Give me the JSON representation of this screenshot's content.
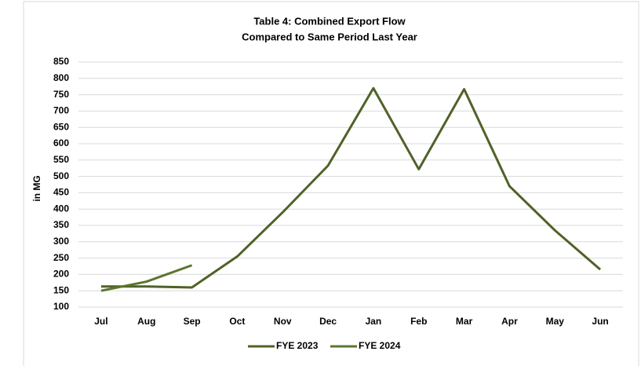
{
  "chart_data": {
    "type": "line",
    "title": "Table 4: Combined Export Flow",
    "subtitle": "Compared to Same Period Last Year",
    "y_label": "in MG",
    "categories": [
      "Jul",
      "Aug",
      "Sep",
      "Oct",
      "Nov",
      "Dec",
      "Jan",
      "Feb",
      "Mar",
      "Apr",
      "May",
      "Jun"
    ],
    "series": [
      {
        "name": "FYE 2023",
        "color": "#4f6228",
        "values": [
          163,
          163,
          160,
          255,
          390,
          533,
          770,
          522,
          767,
          470,
          335,
          215
        ]
      },
      {
        "name": "FYE 2024",
        "color": "#5b7530",
        "values": [
          150,
          178,
          228,
          null,
          null,
          null,
          null,
          null,
          null,
          null,
          null,
          null
        ]
      }
    ],
    "ylim": [
      100,
      850
    ],
    "yticks": [
      100,
      150,
      200,
      250,
      300,
      350,
      400,
      450,
      500,
      550,
      600,
      650,
      700,
      750,
      800,
      850
    ],
    "grid": true,
    "legend": "bottom"
  }
}
